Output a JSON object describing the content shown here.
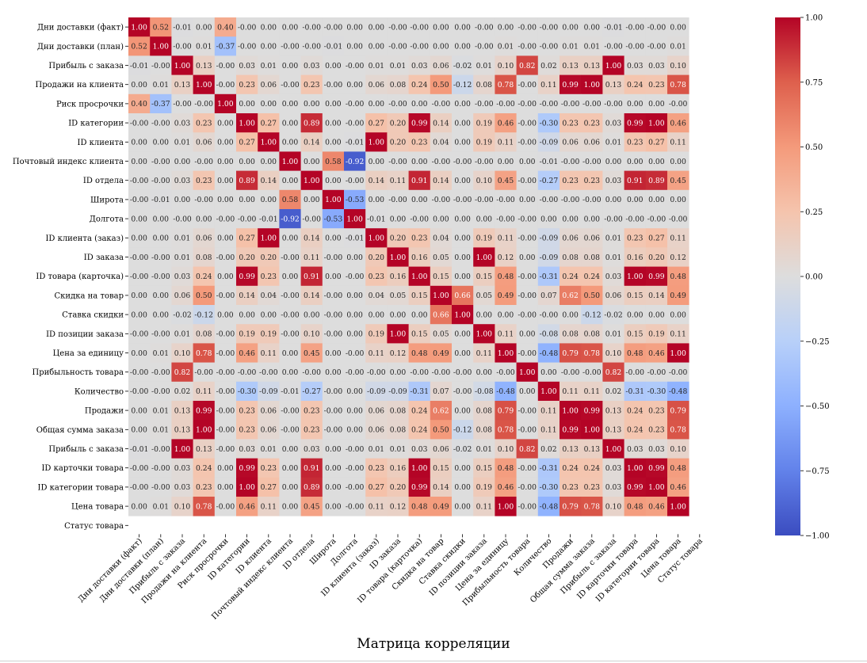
{
  "caption": "Матрица корреляции",
  "chart_data": {
    "type": "heatmap",
    "title": "",
    "labels": [
      "Дни доставки (факт)",
      "Дни доставки (план)",
      "Прибыль с заказа",
      "Продажи на клиента",
      "Риск просрочки",
      "ID категории",
      "ID клиента",
      "Почтовый индекс клиента",
      "ID отдела",
      "Широта",
      "Долгота",
      "ID клиента (заказ)",
      "ID заказа",
      "ID товара (карточка)",
      "Скидка на товар",
      "Ставка скидки",
      "ID позиции заказа",
      "Цена за единицу",
      "Прибыльность товара",
      "Количество",
      "Продажи",
      "Общая сумма заказа",
      "Прибыль с заказа",
      "ID карточки товара",
      "ID категории товара",
      "Цена товара",
      "Статус товара"
    ],
    "matrix": [
      [
        "1.00",
        "0.52",
        "-0.01",
        "0.00",
        "0.40",
        "-0.00",
        "0.00",
        "0.00",
        "-0.00",
        "-0.00",
        "0.00",
        "0.00",
        "-0.00",
        "-0.00",
        "0.00",
        "0.00",
        "-0.00",
        "0.00",
        "-0.00",
        "-0.00",
        "0.00",
        "0.00",
        "-0.01",
        "-0.00",
        "-0.00",
        "0.00",
        null
      ],
      [
        "0.52",
        "1.00",
        "-0.00",
        "0.01",
        "-0.37",
        "-0.00",
        "0.00",
        "-0.00",
        "-0.00",
        "-0.01",
        "0.00",
        "0.00",
        "-0.00",
        "-0.00",
        "0.00",
        "0.00",
        "-0.00",
        "0.01",
        "-0.00",
        "-0.00",
        "0.01",
        "0.01",
        "-0.00",
        "-0.00",
        "-0.00",
        "0.01",
        null
      ],
      [
        "-0.01",
        "-0.00",
        "1.00",
        "0.13",
        "-0.00",
        "0.03",
        "0.01",
        "0.00",
        "0.03",
        "0.00",
        "-0.00",
        "0.01",
        "0.01",
        "0.03",
        "0.06",
        "-0.02",
        "0.01",
        "0.10",
        "0.82",
        "0.02",
        "0.13",
        "0.13",
        "1.00",
        "0.03",
        "0.03",
        "0.10",
        null
      ],
      [
        "0.00",
        "0.01",
        "0.13",
        "1.00",
        "-0.00",
        "0.23",
        "0.06",
        "-0.00",
        "0.23",
        "-0.00",
        "0.00",
        "0.06",
        "0.08",
        "0.24",
        "0.50",
        "-0.12",
        "0.08",
        "0.78",
        "-0.00",
        "0.11",
        "0.99",
        "1.00",
        "0.13",
        "0.24",
        "0.23",
        "0.78",
        null
      ],
      [
        "0.40",
        "-0.37",
        "-0.00",
        "-0.00",
        "1.00",
        "0.00",
        "0.00",
        "0.00",
        "0.00",
        "0.00",
        "-0.00",
        "0.00",
        "-0.00",
        "0.00",
        "-0.00",
        "0.00",
        "-0.00",
        "-0.00",
        "-0.00",
        "-0.00",
        "-0.00",
        "-0.00",
        "-0.00",
        "0.00",
        "0.00",
        "-0.00",
        null
      ],
      [
        "-0.00",
        "-0.00",
        "0.03",
        "0.23",
        "0.00",
        "1.00",
        "0.27",
        "0.00",
        "0.89",
        "0.00",
        "-0.00",
        "0.27",
        "0.20",
        "0.99",
        "0.14",
        "0.00",
        "0.19",
        "0.46",
        "-0.00",
        "-0.30",
        "0.23",
        "0.23",
        "0.03",
        "0.99",
        "1.00",
        "0.46",
        null
      ],
      [
        "0.00",
        "0.00",
        "0.01",
        "0.06",
        "0.00",
        "0.27",
        "1.00",
        "0.00",
        "0.14",
        "0.00",
        "-0.01",
        "1.00",
        "0.20",
        "0.23",
        "0.04",
        "0.00",
        "0.19",
        "0.11",
        "-0.00",
        "-0.09",
        "0.06",
        "0.06",
        "0.01",
        "0.23",
        "0.27",
        "0.11",
        null
      ],
      [
        "0.00",
        "-0.00",
        "0.00",
        "-0.00",
        "0.00",
        "0.00",
        "0.00",
        "1.00",
        "0.00",
        "0.58",
        "-0.92",
        "0.00",
        "-0.00",
        "0.00",
        "-0.00",
        "-0.00",
        "-0.00",
        "0.00",
        "0.00",
        "-0.01",
        "-0.00",
        "-0.00",
        "0.00",
        "0.00",
        "0.00",
        "0.00",
        null
      ],
      [
        "-0.00",
        "-0.00",
        "0.03",
        "0.23",
        "0.00",
        "0.89",
        "0.14",
        "0.00",
        "1.00",
        "0.00",
        "-0.00",
        "0.14",
        "0.11",
        "0.91",
        "0.14",
        "0.00",
        "0.10",
        "0.45",
        "-0.00",
        "-0.27",
        "0.23",
        "0.23",
        "0.03",
        "0.91",
        "0.89",
        "0.45",
        null
      ],
      [
        "-0.00",
        "-0.01",
        "0.00",
        "-0.00",
        "0.00",
        "0.00",
        "0.00",
        "0.58",
        "0.00",
        "1.00",
        "-0.53",
        "0.00",
        "-0.00",
        "0.00",
        "-0.00",
        "-0.00",
        "-0.00",
        "-0.00",
        "0.00",
        "-0.00",
        "-0.00",
        "-0.00",
        "0.00",
        "0.00",
        "0.00",
        "0.00",
        null
      ],
      [
        "0.00",
        "0.00",
        "-0.00",
        "0.00",
        "-0.00",
        "-0.00",
        "-0.01",
        "-0.92",
        "-0.00",
        "-0.53",
        "1.00",
        "-0.01",
        "0.00",
        "-0.00",
        "0.00",
        "0.00",
        "0.00",
        "-0.00",
        "-0.00",
        "0.00",
        "0.00",
        "0.00",
        "-0.00",
        "-0.00",
        "-0.00",
        "-0.00",
        null
      ],
      [
        "0.00",
        "0.00",
        "0.01",
        "0.06",
        "0.00",
        "0.27",
        "1.00",
        "0.00",
        "0.14",
        "0.00",
        "-0.01",
        "1.00",
        "0.20",
        "0.23",
        "0.04",
        "0.00",
        "0.19",
        "0.11",
        "-0.00",
        "-0.09",
        "0.06",
        "0.06",
        "0.01",
        "0.23",
        "0.27",
        "0.11",
        null
      ],
      [
        "-0.00",
        "-0.00",
        "0.01",
        "0.08",
        "-0.00",
        "0.20",
        "0.20",
        "-0.00",
        "0.11",
        "-0.00",
        "0.00",
        "0.20",
        "1.00",
        "0.16",
        "0.05",
        "0.00",
        "1.00",
        "0.12",
        "0.00",
        "-0.09",
        "0.08",
        "0.08",
        "0.01",
        "0.16",
        "0.20",
        "0.12",
        null
      ],
      [
        "-0.00",
        "-0.00",
        "0.03",
        "0.24",
        "0.00",
        "0.99",
        "0.23",
        "0.00",
        "0.91",
        "0.00",
        "-0.00",
        "0.23",
        "0.16",
        "1.00",
        "0.15",
        "0.00",
        "0.15",
        "0.48",
        "-0.00",
        "-0.31",
        "0.24",
        "0.24",
        "0.03",
        "1.00",
        "0.99",
        "0.48",
        null
      ],
      [
        "0.00",
        "0.00",
        "0.06",
        "0.50",
        "-0.00",
        "0.14",
        "0.04",
        "-0.00",
        "0.14",
        "-0.00",
        "0.00",
        "0.04",
        "0.05",
        "0.15",
        "1.00",
        "0.66",
        "0.05",
        "0.49",
        "-0.00",
        "0.07",
        "0.62",
        "0.50",
        "0.06",
        "0.15",
        "0.14",
        "0.49",
        null
      ],
      [
        "0.00",
        "0.00",
        "-0.02",
        "-0.12",
        "0.00",
        "0.00",
        "0.00",
        "-0.00",
        "0.00",
        "-0.00",
        "0.00",
        "0.00",
        "0.00",
        "0.00",
        "0.66",
        "1.00",
        "0.00",
        "0.00",
        "-0.00",
        "-0.00",
        "0.00",
        "-0.12",
        "-0.02",
        "0.00",
        "0.00",
        "0.00",
        null
      ],
      [
        "-0.00",
        "-0.00",
        "0.01",
        "0.08",
        "-0.00",
        "0.19",
        "0.19",
        "-0.00",
        "0.10",
        "-0.00",
        "0.00",
        "0.19",
        "1.00",
        "0.15",
        "0.05",
        "0.00",
        "1.00",
        "0.11",
        "0.00",
        "-0.08",
        "0.08",
        "0.08",
        "0.01",
        "0.15",
        "0.19",
        "0.11",
        null
      ],
      [
        "0.00",
        "0.01",
        "0.10",
        "0.78",
        "-0.00",
        "0.46",
        "0.11",
        "0.00",
        "0.45",
        "0.00",
        "-0.00",
        "0.11",
        "0.12",
        "0.48",
        "0.49",
        "0.00",
        "0.11",
        "1.00",
        "-0.00",
        "-0.48",
        "0.79",
        "0.78",
        "0.10",
        "0.48",
        "0.46",
        "1.00",
        null
      ],
      [
        "-0.00",
        "-0.00",
        "0.82",
        "-0.00",
        "-0.00",
        "-0.00",
        "-0.00",
        "0.00",
        "-0.00",
        "0.00",
        "-0.00",
        "-0.00",
        "0.00",
        "-0.00",
        "-0.00",
        "-0.00",
        "0.00",
        "-0.00",
        "1.00",
        "0.00",
        "-0.00",
        "-0.00",
        "0.82",
        "-0.00",
        "-0.00",
        "-0.00",
        null
      ],
      [
        "-0.00",
        "-0.00",
        "0.02",
        "0.11",
        "-0.00",
        "-0.30",
        "-0.09",
        "-0.01",
        "-0.27",
        "-0.00",
        "0.00",
        "-0.09",
        "-0.09",
        "-0.31",
        "0.07",
        "-0.00",
        "-0.08",
        "-0.48",
        "0.00",
        "1.00",
        "0.11",
        "0.11",
        "0.02",
        "-0.31",
        "-0.30",
        "-0.48",
        null
      ],
      [
        "0.00",
        "0.01",
        "0.13",
        "0.99",
        "-0.00",
        "0.23",
        "0.06",
        "-0.00",
        "0.23",
        "-0.00",
        "0.00",
        "0.06",
        "0.08",
        "0.24",
        "0.62",
        "0.00",
        "0.08",
        "0.79",
        "-0.00",
        "0.11",
        "1.00",
        "0.99",
        "0.13",
        "0.24",
        "0.23",
        "0.79",
        null
      ],
      [
        "0.00",
        "0.01",
        "0.13",
        "1.00",
        "-0.00",
        "0.23",
        "0.06",
        "-0.00",
        "0.23",
        "-0.00",
        "0.00",
        "0.06",
        "0.08",
        "0.24",
        "0.50",
        "-0.12",
        "0.08",
        "0.78",
        "-0.00",
        "0.11",
        "0.99",
        "1.00",
        "0.13",
        "0.24",
        "0.23",
        "0.78",
        null
      ],
      [
        "-0.01",
        "-0.00",
        "1.00",
        "0.13",
        "-0.00",
        "0.03",
        "0.01",
        "0.00",
        "0.03",
        "0.00",
        "-0.00",
        "0.01",
        "0.01",
        "0.03",
        "0.06",
        "-0.02",
        "0.01",
        "0.10",
        "0.82",
        "0.02",
        "0.13",
        "0.13",
        "1.00",
        "0.03",
        "0.03",
        "0.10",
        null
      ],
      [
        "-0.00",
        "-0.00",
        "0.03",
        "0.24",
        "0.00",
        "0.99",
        "0.23",
        "0.00",
        "0.91",
        "0.00",
        "-0.00",
        "0.23",
        "0.16",
        "1.00",
        "0.15",
        "0.00",
        "0.15",
        "0.48",
        "-0.00",
        "-0.31",
        "0.24",
        "0.24",
        "0.03",
        "1.00",
        "0.99",
        "0.48",
        null
      ],
      [
        "-0.00",
        "-0.00",
        "0.03",
        "0.23",
        "0.00",
        "1.00",
        "0.27",
        "0.00",
        "0.89",
        "0.00",
        "-0.00",
        "0.27",
        "0.20",
        "0.99",
        "0.14",
        "0.00",
        "0.19",
        "0.46",
        "-0.00",
        "-0.30",
        "0.23",
        "0.23",
        "0.03",
        "0.99",
        "1.00",
        "0.46",
        null
      ],
      [
        "0.00",
        "0.01",
        "0.10",
        "0.78",
        "-0.00",
        "0.46",
        "0.11",
        "0.00",
        "0.45",
        "0.00",
        "-0.00",
        "0.11",
        "0.12",
        "0.48",
        "0.49",
        "0.00",
        "0.11",
        "1.00",
        "-0.00",
        "-0.48",
        "0.79",
        "0.78",
        "0.10",
        "0.48",
        "0.46",
        "1.00",
        null
      ],
      [
        null,
        null,
        null,
        null,
        null,
        null,
        null,
        null,
        null,
        null,
        null,
        null,
        null,
        null,
        null,
        null,
        null,
        null,
        null,
        null,
        null,
        null,
        null,
        null,
        null,
        null,
        null
      ]
    ],
    "colorbar": {
      "range": [
        -1,
        1
      ],
      "ticks": [
        "1.00",
        "0.75",
        "0.50",
        "0.25",
        "0.00",
        "−0.25",
        "−0.50",
        "−0.75",
        "−1.00"
      ],
      "colormap": "coolwarm",
      "low_color": "#3b4cc0",
      "mid_color": "#dddddd",
      "high_color": "#b40426"
    }
  }
}
